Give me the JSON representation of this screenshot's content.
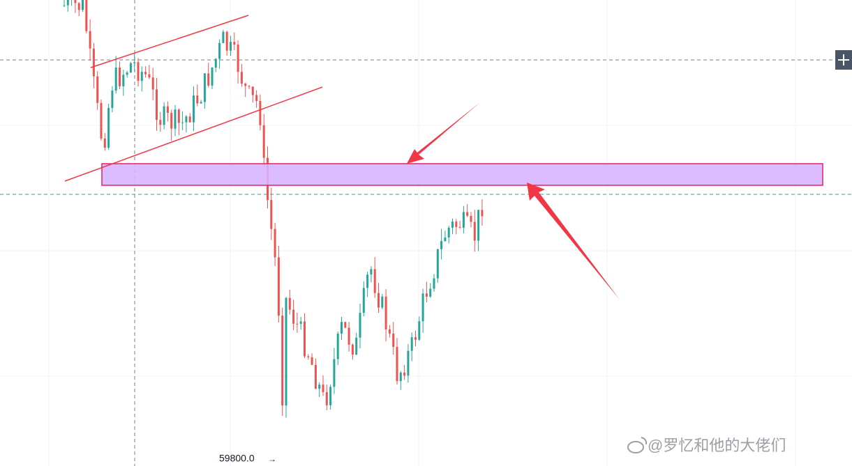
{
  "low_label": "59800.0",
  "low_arrow": "→",
  "watermark": "@罗忆和他的大佬们"
}
